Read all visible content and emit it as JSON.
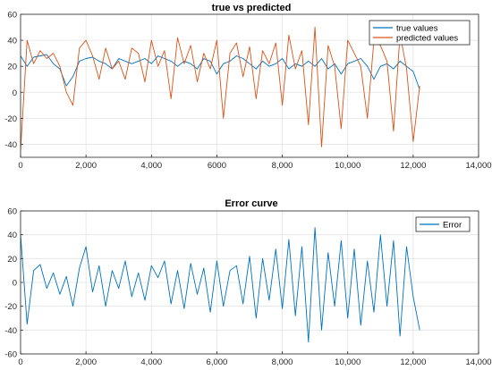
{
  "chart_data": [
    {
      "type": "line",
      "title": "true vs predicted",
      "xlim": [
        0,
        14000
      ],
      "ylim": [
        -50,
        60
      ],
      "x_ticks": [
        0,
        2000,
        4000,
        6000,
        8000,
        10000,
        12000,
        14000
      ],
      "x_tick_labels": [
        "0",
        "2,000",
        "4,000",
        "6000",
        "8,000",
        "10,000",
        "12,000",
        "14,000"
      ],
      "y_ticks": [
        -40,
        -20,
        0,
        20,
        40,
        60
      ],
      "y_tick_labels": [
        "-40",
        "-20",
        "0",
        "20",
        "40",
        "60"
      ],
      "grid": true,
      "legend_position": "top-right",
      "x": [
        0,
        200,
        400,
        600,
        800,
        1000,
        1200,
        1400,
        1600,
        1800,
        2000,
        2200,
        2400,
        2600,
        2800,
        3000,
        3200,
        3400,
        3600,
        3800,
        4000,
        4200,
        4400,
        4600,
        4800,
        5000,
        5200,
        5400,
        5600,
        5800,
        6000,
        6200,
        6400,
        6600,
        6800,
        7000,
        7200,
        7400,
        7600,
        7800,
        8000,
        8200,
        8400,
        8600,
        8800,
        9000,
        9200,
        9400,
        9600,
        9800,
        10000,
        10200,
        10400,
        10600,
        10800,
        11000,
        11200,
        11400,
        11600,
        11800,
        12000,
        12200
      ],
      "series": [
        {
          "name": "true values",
          "color": "#0072BD",
          "values": [
            28,
            20,
            27,
            28,
            29,
            22,
            18,
            5,
            12,
            24,
            26,
            27,
            24,
            22,
            18,
            26,
            24,
            22,
            24,
            26,
            22,
            28,
            26,
            24,
            20,
            24,
            22,
            18,
            26,
            24,
            14,
            22,
            24,
            28,
            26,
            22,
            18,
            24,
            20,
            22,
            26,
            18,
            22,
            20,
            24,
            20,
            26,
            18,
            22,
            14,
            22,
            24,
            26,
            20,
            10,
            20,
            22,
            18,
            24,
            20,
            16,
            2
          ]
        },
        {
          "name": "predicted values",
          "color": "#D95319",
          "values": [
            -45,
            40,
            22,
            32,
            26,
            30,
            20,
            0,
            -10,
            34,
            40,
            28,
            10,
            34,
            18,
            24,
            10,
            34,
            30,
            8,
            40,
            20,
            32,
            -5,
            42,
            22,
            36,
            8,
            30,
            18,
            40,
            -20,
            30,
            38,
            12,
            35,
            -5,
            32,
            22,
            38,
            -10,
            44,
            18,
            32,
            -25,
            50,
            -42,
            36,
            20,
            -28,
            40,
            30,
            20,
            -20,
            40,
            36,
            24,
            -30,
            45,
            18,
            -38,
            5
          ]
        }
      ]
    },
    {
      "type": "line",
      "title": "Error curve",
      "xlim": [
        0,
        14000
      ],
      "ylim": [
        -60,
        60
      ],
      "x_ticks": [
        0,
        2000,
        4000,
        6000,
        8000,
        10000,
        12000,
        14000
      ],
      "x_tick_labels": [
        "0",
        "2,000",
        "4,000",
        "6,000",
        "8,000",
        "10,000",
        "12,000",
        "14,000"
      ],
      "y_ticks": [
        -60,
        -40,
        -20,
        0,
        20,
        40,
        60
      ],
      "y_tick_labels": [
        "-60",
        "-40",
        "-20",
        "0",
        "20",
        "40",
        "60"
      ],
      "grid": true,
      "legend_position": "top-right",
      "x": [
        0,
        200,
        400,
        600,
        800,
        1000,
        1200,
        1400,
        1600,
        1800,
        2000,
        2200,
        2400,
        2600,
        2800,
        3000,
        3200,
        3400,
        3600,
        3800,
        4000,
        4200,
        4400,
        4600,
        4800,
        5000,
        5200,
        5400,
        5600,
        5800,
        6000,
        6200,
        6400,
        6600,
        6800,
        7000,
        7200,
        7400,
        7600,
        7800,
        8000,
        8200,
        8400,
        8600,
        8800,
        9000,
        9200,
        9400,
        9600,
        9800,
        10000,
        10200,
        10400,
        10600,
        10800,
        11000,
        11200,
        11400,
        11600,
        11800,
        12000,
        12200
      ],
      "series": [
        {
          "name": "Error",
          "color": "#0072BD",
          "values": [
            40,
            -35,
            10,
            15,
            -5,
            8,
            -10,
            5,
            -20,
            12,
            30,
            -8,
            14,
            -20,
            10,
            -5,
            18,
            -12,
            8,
            -15,
            14,
            4,
            18,
            -18,
            10,
            -22,
            16,
            -10,
            12,
            -25,
            18,
            -20,
            10,
            14,
            -18,
            22,
            -30,
            20,
            -15,
            28,
            -22,
            36,
            -28,
            30,
            -50,
            46,
            -40,
            25,
            -20,
            35,
            -30,
            28,
            -36,
            18,
            -25,
            40,
            -20,
            35,
            -45,
            30,
            -12,
            -40
          ]
        }
      ]
    }
  ]
}
